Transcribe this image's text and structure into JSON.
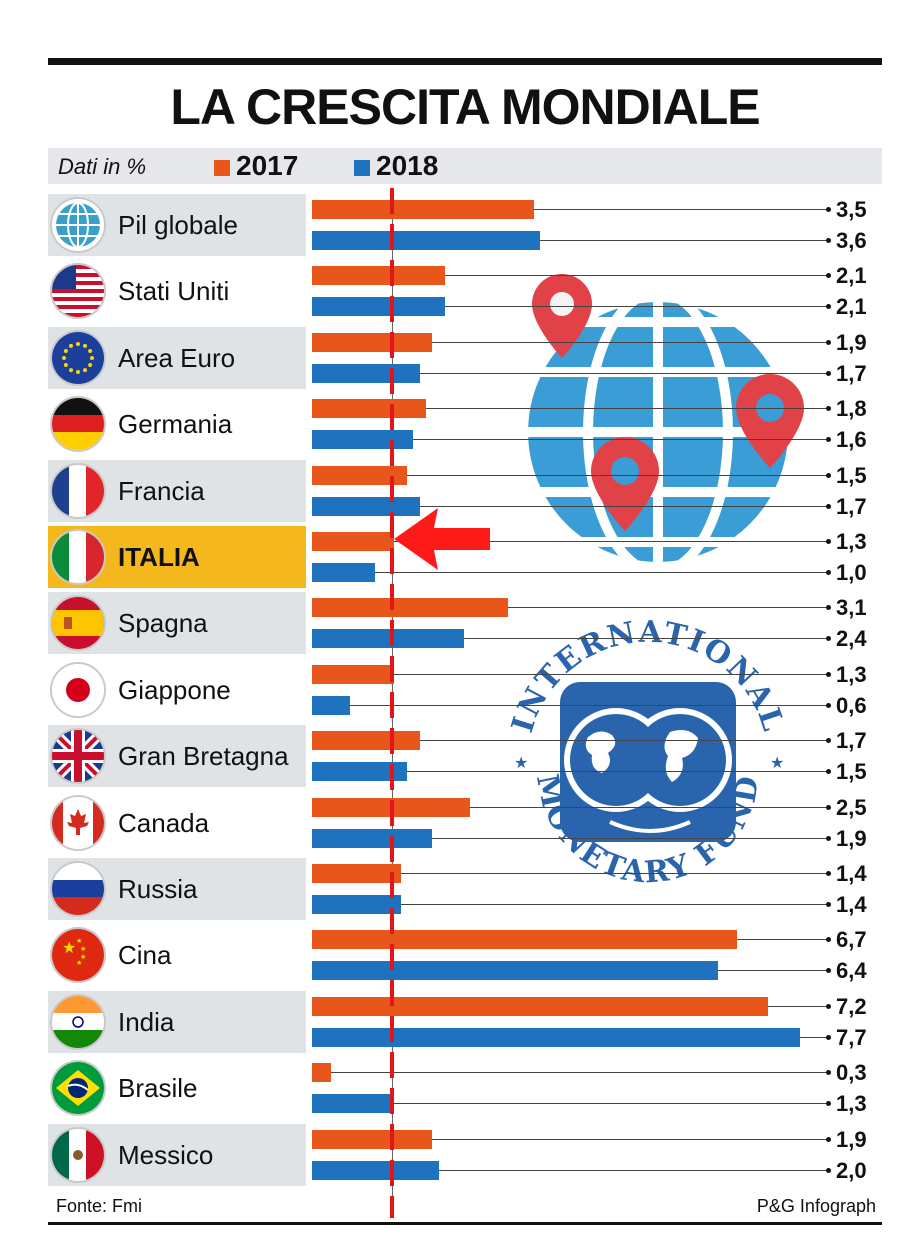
{
  "title": "LA CRESCITA MONDIALE",
  "legend": {
    "units_label": "Dati in %",
    "series_2017": "2017",
    "series_2018": "2018"
  },
  "colors": {
    "series_2017": "#e8561c",
    "series_2018": "#1f73be",
    "highlight": "#f5b81c",
    "reference_line": "#e0161b"
  },
  "footer": {
    "source": "Fonte: Fmi",
    "credit": "P&G Infograph"
  },
  "chart_data": {
    "type": "bar",
    "orientation": "horizontal",
    "title": "LA CRESCITA MONDIALE",
    "unit": "%",
    "xlim": [
      0,
      8
    ],
    "reference_line_value": 1.3,
    "highlighted_category": "ITALIA",
    "categories": [
      "Pil globale",
      "Stati Uniti",
      "Area Euro",
      "Germania",
      "Francia",
      "ITALIA",
      "Spagna",
      "Giappone",
      "Gran Bretagna",
      "Canada",
      "Russia",
      "Cina",
      "India",
      "Brasile",
      "Messico"
    ],
    "icons": [
      "globe-icon",
      "usa-flag-icon",
      "eu-flag-icon",
      "germany-flag-icon",
      "france-flag-icon",
      "italy-flag-icon",
      "spain-flag-icon",
      "japan-flag-icon",
      "uk-flag-icon",
      "canada-flag-icon",
      "russia-flag-icon",
      "china-flag-icon",
      "india-flag-icon",
      "brazil-flag-icon",
      "mexico-flag-icon"
    ],
    "series": [
      {
        "name": "2017",
        "values": [
          3.5,
          2.1,
          1.9,
          1.8,
          1.5,
          1.3,
          3.1,
          1.3,
          1.7,
          2.5,
          1.4,
          6.7,
          7.2,
          0.3,
          1.9
        ],
        "labels": [
          "3,5",
          "2,1",
          "1,9",
          "1,8",
          "1,5",
          "1,3",
          "3,1",
          "1,3",
          "1,7",
          "2,5",
          "1,4",
          "6,7",
          "7,2",
          "0,3",
          "1,9"
        ]
      },
      {
        "name": "2018",
        "values": [
          3.6,
          2.1,
          1.7,
          1.6,
          1.7,
          1.0,
          2.4,
          0.6,
          1.5,
          1.9,
          1.4,
          6.4,
          7.7,
          1.3,
          2.0
        ],
        "labels": [
          "3,6",
          "2,1",
          "1,7",
          "1,6",
          "1,7",
          "1,0",
          "2,4",
          "0,6",
          "1,5",
          "1,9",
          "1,4",
          "6,4",
          "7,7",
          "1,3",
          "2,0"
        ]
      }
    ]
  }
}
